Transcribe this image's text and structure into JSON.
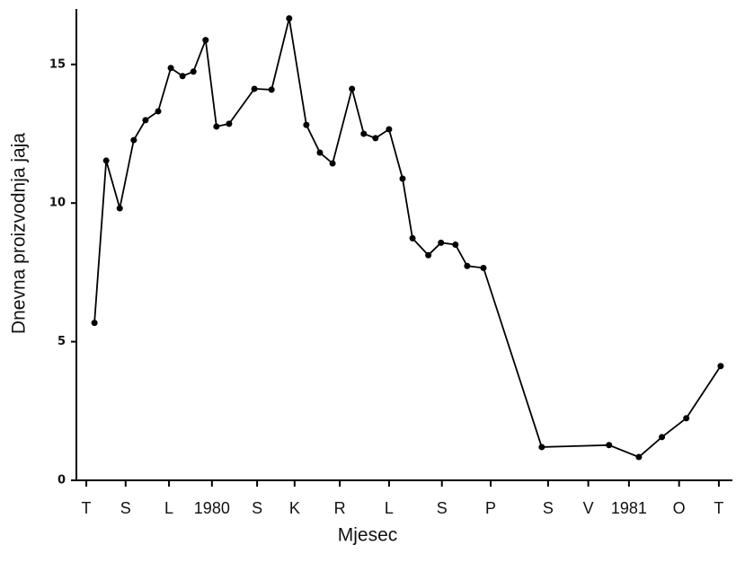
{
  "chart_data": {
    "type": "line",
    "x_label": "Mjesec",
    "y_label": "Dnevna proizvodnja jaja",
    "xlim": [
      -0.22,
      14.3
    ],
    "xticks": [
      {
        "value": 0,
        "label": "T"
      },
      {
        "value": 0.87,
        "label": "S"
      },
      {
        "value": 1.83,
        "label": "L"
      },
      {
        "value": 2.78,
        "label": "1980"
      },
      {
        "value": 3.78,
        "label": "S"
      },
      {
        "value": 4.61,
        "label": "K"
      },
      {
        "value": 5.61,
        "label": "R"
      },
      {
        "value": 6.7,
        "label": "L"
      },
      {
        "value": 7.87,
        "label": "S"
      },
      {
        "value": 8.95,
        "label": "P"
      },
      {
        "value": 10.22,
        "label": "S"
      },
      {
        "value": 11.11,
        "label": "V"
      },
      {
        "value": 12.01,
        "label": "1981"
      },
      {
        "value": 13.12,
        "label": "O"
      },
      {
        "value": 14,
        "label": "T"
      }
    ],
    "ylim": [
      0,
      17
    ],
    "yticks": [
      0,
      5,
      10,
      15
    ],
    "color": "#000000",
    "x": [
      0.18,
      0.44,
      0.74,
      1.05,
      1.31,
      1.59,
      1.87,
      2.13,
      2.37,
      2.64,
      2.88,
      3.16,
      3.72,
      4.1,
      4.49,
      4.87,
      5.17,
      5.45,
      5.88,
      6.14,
      6.4,
      6.7,
      7.0,
      7.22,
      7.57,
      7.85,
      8.17,
      8.43,
      8.79,
      10.08,
      11.57,
      12.23,
      12.74,
      13.28,
      14.04
    ],
    "values": [
      5.68,
      11.53,
      9.81,
      12.27,
      12.99,
      13.31,
      14.87,
      14.58,
      14.74,
      15.88,
      12.76,
      12.86,
      14.12,
      14.09,
      16.66,
      12.82,
      11.82,
      11.43,
      14.12,
      12.5,
      12.34,
      12.66,
      10.88,
      8.73,
      8.12,
      8.57,
      8.5,
      7.73,
      7.66,
      1.2,
      1.27,
      0.84,
      1.56,
      2.24,
      4.12
    ]
  }
}
